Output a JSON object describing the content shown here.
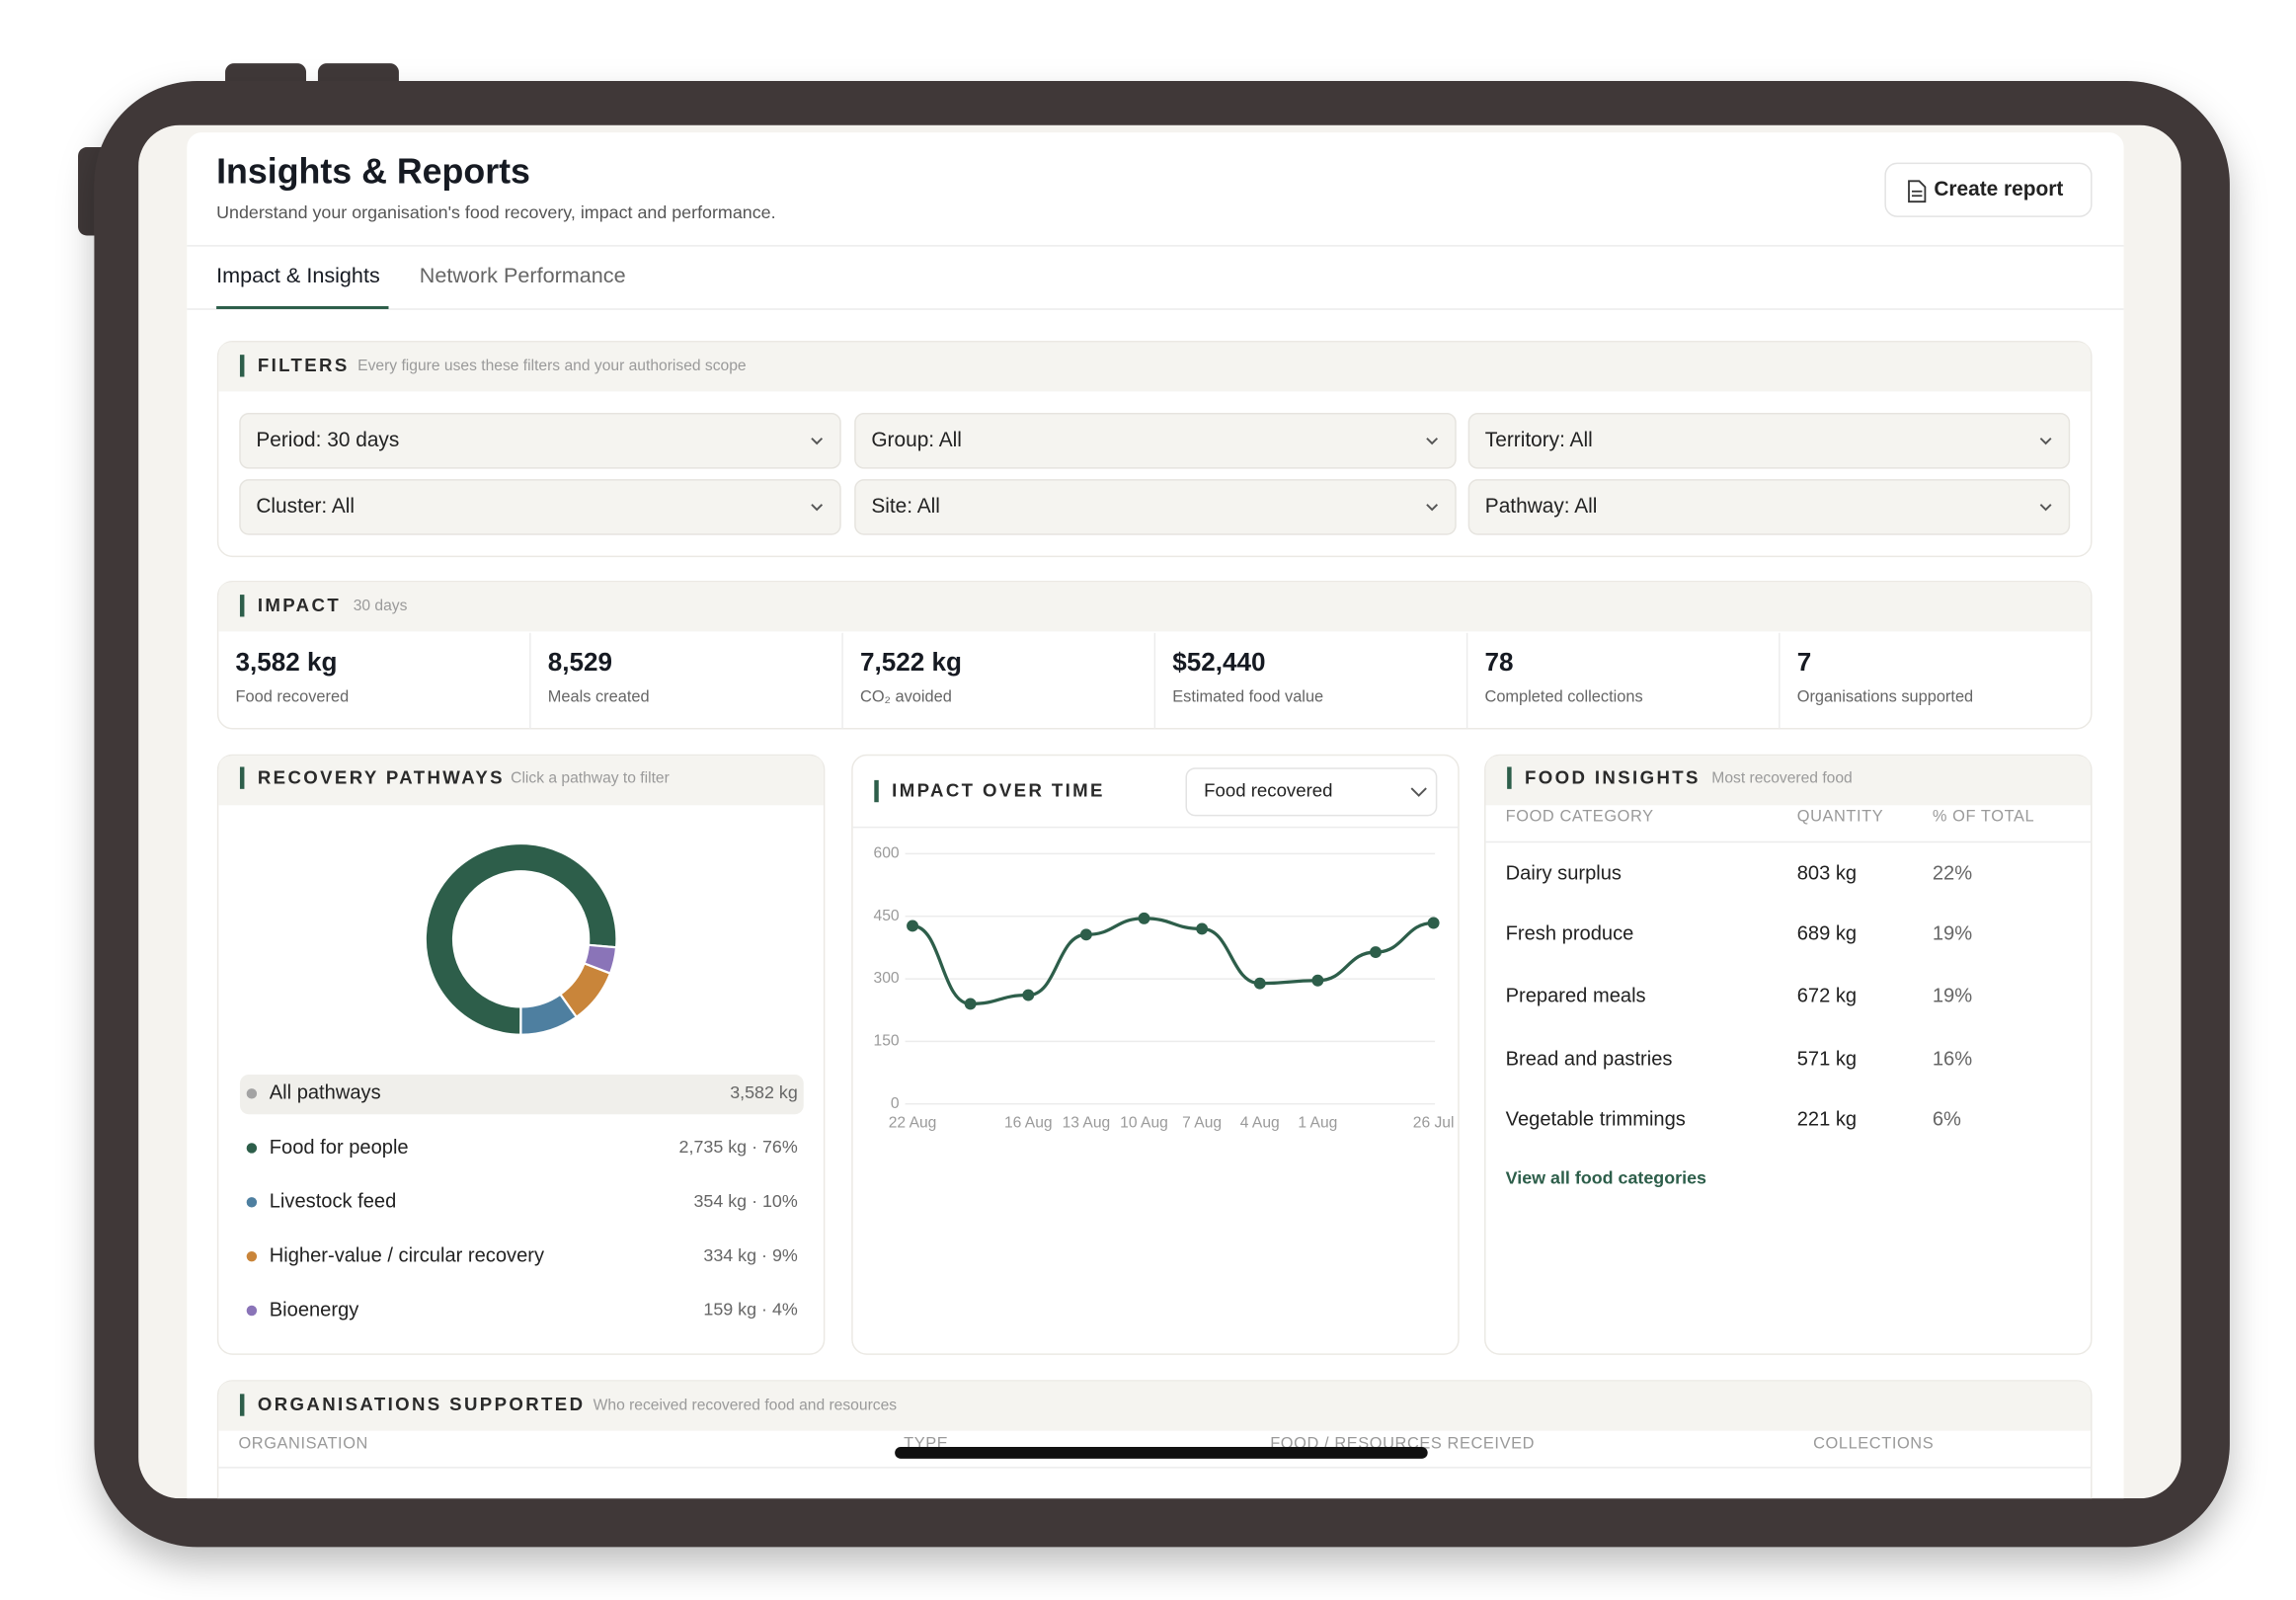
{
  "header": {
    "title": "Insights & Reports",
    "subtitle": "Understand your organisation's food recovery, impact and performance.",
    "action": "Create report"
  },
  "tabs": [
    "Impact & Insights",
    "Network Performance"
  ],
  "filters": {
    "title": "FILTERS",
    "note": "Every figure uses these filters and your authorised scope",
    "options": [
      "Period: 30 days",
      "Group: All",
      "Territory: All",
      "Cluster: All",
      "Site: All",
      "Pathway: All"
    ]
  },
  "impact": {
    "title": "IMPACT",
    "note": "30 days",
    "metrics": [
      {
        "value": "3,582 kg",
        "label": "Food recovered"
      },
      {
        "value": "8,529",
        "label": "Meals created"
      },
      {
        "value": "7,522 kg",
        "label": "CO₂ avoided"
      },
      {
        "value": "$52,440",
        "label": "Estimated food value"
      },
      {
        "value": "78",
        "label": "Completed collections"
      },
      {
        "value": "7",
        "label": "Organisations supported"
      }
    ]
  },
  "recovery_pathways": {
    "title": "RECOVERY PATHWAYS",
    "note": "Click a pathway to filter",
    "total": {
      "name": "All pathways",
      "label": "3,582 kg"
    },
    "chart_data": {
      "type": "donut",
      "categories": [
        "Food for people",
        "Livestock feed",
        "Higher-value / circular recovery",
        "Bioenergy"
      ],
      "values": [
        2735,
        354,
        334,
        159
      ],
      "value_labels": [
        "2,735 kg · 76%",
        "354 kg · 10%",
        "334 kg · 9%",
        "159 kg · 4%"
      ],
      "colors": [
        "#2d5e4a",
        "#4e7fa0",
        "#c9853a",
        "#8a74b8"
      ]
    }
  },
  "impact_over_time": {
    "title": "IMPACT OVER TIME",
    "selector": "Food recovered",
    "chart_data": {
      "type": "line",
      "categories": [
        "22 Aug",
        null,
        "16 Aug",
        "13 Aug",
        "10 Aug",
        "7 Aug",
        "4 Aug",
        "1 Aug",
        null,
        "26 Jul"
      ],
      "values": [
        427,
        240,
        261,
        406,
        445,
        420,
        289,
        296,
        364,
        434
      ],
      "color": "#2d5e4a",
      "ylim": [
        0,
        600
      ],
      "yticks": [
        0,
        150,
        300,
        450,
        600
      ],
      "grid": true
    }
  },
  "food_insights": {
    "title": "FOOD INSIGHTS",
    "note": "Most recovered food",
    "columns": [
      "FOOD CATEGORY",
      "QUANTITY",
      "% OF TOTAL"
    ],
    "rows": [
      [
        "Dairy surplus",
        "803 kg",
        "22%"
      ],
      [
        "Fresh produce",
        "689 kg",
        "19%"
      ],
      [
        "Prepared meals",
        "672 kg",
        "19%"
      ],
      [
        "Bread and pastries",
        "571 kg",
        "16%"
      ],
      [
        "Vegetable trimmings",
        "221 kg",
        "6%"
      ]
    ],
    "link": "View all food categories"
  },
  "organisations": {
    "title": "ORGANISATIONS SUPPORTED",
    "note": "Who received recovered food and resources",
    "columns": [
      "ORGANISATION",
      "TYPE",
      "FOOD / RESOURCES RECEIVED",
      "COLLECTIONS"
    ]
  }
}
